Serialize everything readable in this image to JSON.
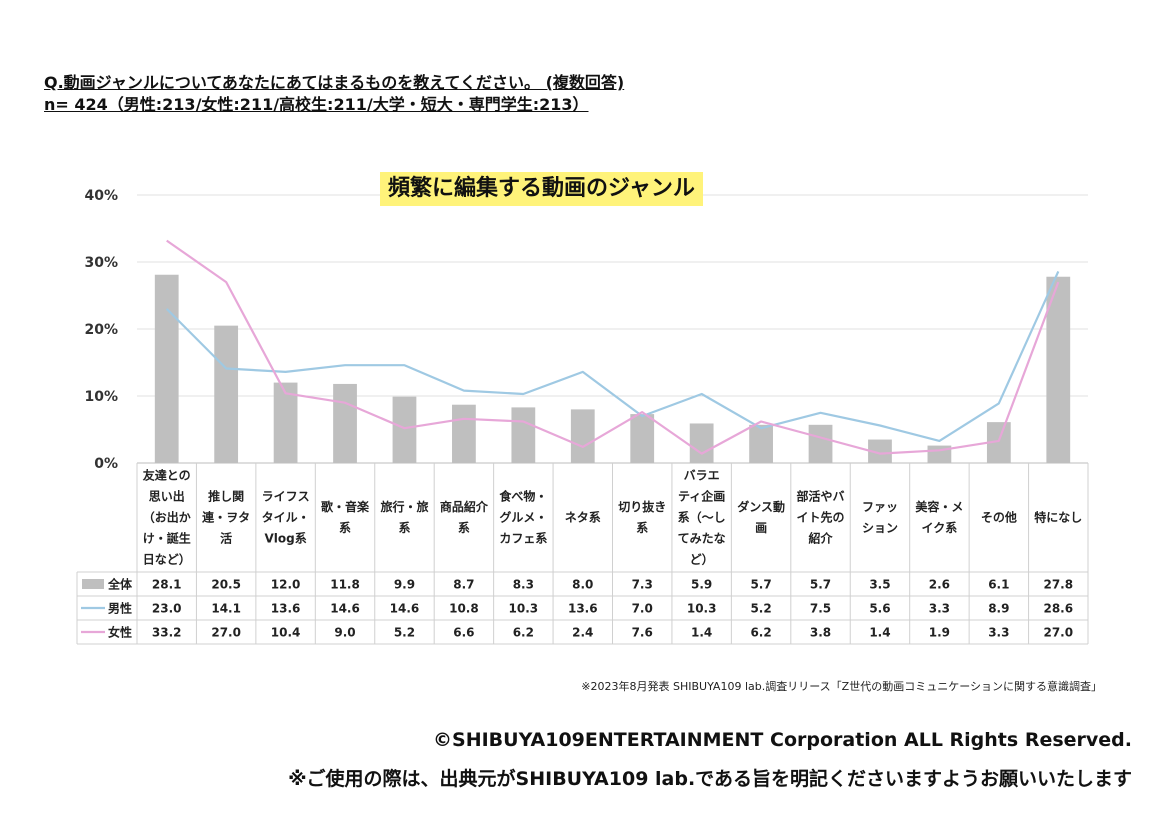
{
  "header": {
    "question": "Q.動画ジャンルについてあなたにあてはまるものを教えてください。 (複数回答)",
    "sample": "n= 424（男性:213/女性:211/高校生:211/大学・短大・専門学生:213）"
  },
  "footer": {
    "source_note": "※2023年8月発表 SHIBUYA109  lab.調査リリース「Z世代の動画コミュニケーションに関する意識調査」",
    "copyright": "©SHIBUYA109ENTERTAINMENT Corporation    ALL Rights Reserved.",
    "usage_notice": "※ご使用の際は、出典元がSHIBUYA109 lab.である旨を明記くださいますようお願いいたします"
  },
  "chart_data": {
    "type": "bar",
    "title": "頻繁に編集する動画のジャンル",
    "y_ticks": [
      "0%",
      "10%",
      "20%",
      "30%",
      "40%"
    ],
    "ylim": [
      0,
      40
    ],
    "grid": true,
    "legend": "table-left",
    "categories": [
      [
        "友達との",
        "思い出",
        "（お出か",
        "け・誕生",
        "日など）"
      ],
      [
        "推し関",
        "連・ヲタ",
        "活"
      ],
      [
        "ライフス",
        "タイル・",
        "Vlog系"
      ],
      [
        "歌・音楽",
        "系"
      ],
      [
        "旅行・旅",
        "系"
      ],
      [
        "商品紹介",
        "系"
      ],
      [
        "食べ物・",
        "グルメ・",
        "カフェ系"
      ],
      [
        "ネタ系"
      ],
      [
        "切り抜き",
        "系"
      ],
      [
        "バラエ",
        "ティ企画",
        "系（～し",
        "てみたな",
        "ど）"
      ],
      [
        "ダンス動",
        "画"
      ],
      [
        "部活やバ",
        "イト先の",
        "紹介"
      ],
      [
        "ファッ",
        "ション"
      ],
      [
        "美容・メ",
        "イク系"
      ],
      [
        "その他"
      ],
      [
        "特になし"
      ]
    ],
    "series": [
      {
        "name": "全体",
        "kind": "bar",
        "color": "#bfbfbf",
        "values": [
          28.1,
          20.5,
          12.0,
          11.8,
          9.9,
          8.7,
          8.3,
          8.0,
          7.3,
          5.9,
          5.7,
          5.7,
          3.5,
          2.6,
          6.1,
          27.8
        ],
        "labels": [
          "28.1",
          "20.5",
          "12.0",
          "11.8",
          "9.9",
          "8.7",
          "8.3",
          "8.0",
          "7.3",
          "5.9",
          "5.7",
          "5.7",
          "3.5",
          "2.6",
          "6.1",
          "27.8"
        ]
      },
      {
        "name": "男性",
        "kind": "line",
        "color": "#9fc9e3",
        "values": [
          23.0,
          14.1,
          13.6,
          14.6,
          14.6,
          10.8,
          10.3,
          13.6,
          7.0,
          10.3,
          5.2,
          7.5,
          5.6,
          3.3,
          8.9,
          28.6
        ],
        "labels": [
          "23.0",
          "14.1",
          "13.6",
          "14.6",
          "14.6",
          "10.8",
          "10.3",
          "13.6",
          "7.0",
          "10.3",
          "5.2",
          "7.5",
          "5.6",
          "3.3",
          "8.9",
          "28.6"
        ]
      },
      {
        "name": "女性",
        "kind": "line",
        "color": "#e7a7d8",
        "values": [
          33.2,
          27.0,
          10.4,
          9.0,
          5.2,
          6.6,
          6.2,
          2.4,
          7.6,
          1.4,
          6.2,
          3.8,
          1.4,
          1.9,
          3.3,
          27.0
        ],
        "labels": [
          "33.2",
          "27.0",
          "10.4",
          "9.0",
          "5.2",
          "6.6",
          "6.2",
          "2.4",
          "7.6",
          "1.4",
          "6.2",
          "3.8",
          "1.4",
          "1.9",
          "3.3",
          "27.0"
        ]
      }
    ]
  }
}
